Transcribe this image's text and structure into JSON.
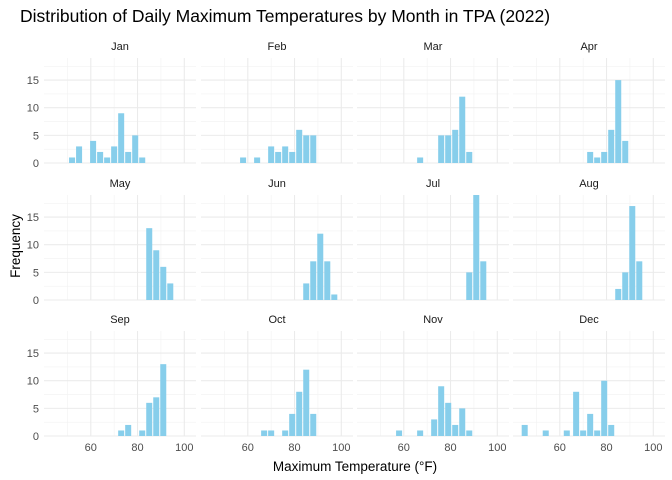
{
  "chart_data": {
    "type": "bar",
    "title": "Distribution of Daily Maximum Temperatures by Month in TPA (2022)",
    "xlabel": "Maximum Temperature (°F)",
    "ylabel": "Frequency",
    "xlim": [
      40,
      105
    ],
    "ylim": [
      0,
      19
    ],
    "x_ticks": [
      60,
      80,
      100
    ],
    "y_ticks": [
      0,
      5,
      10,
      15
    ],
    "bin_width": 3,
    "bar_color": "#87CEEB",
    "grid": true,
    "facets": [
      {
        "label": "Jan",
        "bins": [
          {
            "x": 52,
            "count": 1
          },
          {
            "x": 55,
            "count": 3
          },
          {
            "x": 61,
            "count": 4
          },
          {
            "x": 64,
            "count": 2
          },
          {
            "x": 67,
            "count": 1
          },
          {
            "x": 70,
            "count": 3
          },
          {
            "x": 73,
            "count": 9
          },
          {
            "x": 76,
            "count": 2
          },
          {
            "x": 79,
            "count": 5
          },
          {
            "x": 82,
            "count": 1
          }
        ]
      },
      {
        "label": "Feb",
        "bins": [
          {
            "x": 58,
            "count": 1
          },
          {
            "x": 64,
            "count": 1
          },
          {
            "x": 70,
            "count": 3
          },
          {
            "x": 73,
            "count": 2
          },
          {
            "x": 76,
            "count": 3
          },
          {
            "x": 79,
            "count": 2
          },
          {
            "x": 82,
            "count": 6
          },
          {
            "x": 85,
            "count": 5
          },
          {
            "x": 88,
            "count": 5
          }
        ]
      },
      {
        "label": "Mar",
        "bins": [
          {
            "x": 67,
            "count": 1
          },
          {
            "x": 76,
            "count": 5
          },
          {
            "x": 79,
            "count": 5
          },
          {
            "x": 82,
            "count": 6
          },
          {
            "x": 85,
            "count": 12
          },
          {
            "x": 88,
            "count": 2
          }
        ]
      },
      {
        "label": "Apr",
        "bins": [
          {
            "x": 73,
            "count": 2
          },
          {
            "x": 76,
            "count": 1
          },
          {
            "x": 79,
            "count": 2
          },
          {
            "x": 82,
            "count": 6
          },
          {
            "x": 85,
            "count": 15
          },
          {
            "x": 88,
            "count": 4
          }
        ]
      },
      {
        "label": "May",
        "bins": [
          {
            "x": 85,
            "count": 13
          },
          {
            "x": 88,
            "count": 9
          },
          {
            "x": 91,
            "count": 6
          },
          {
            "x": 94,
            "count": 3
          }
        ]
      },
      {
        "label": "Jun",
        "bins": [
          {
            "x": 85,
            "count": 3
          },
          {
            "x": 88,
            "count": 7
          },
          {
            "x": 91,
            "count": 12
          },
          {
            "x": 94,
            "count": 7
          },
          {
            "x": 97,
            "count": 1
          }
        ]
      },
      {
        "label": "Jul",
        "bins": [
          {
            "x": 88,
            "count": 5
          },
          {
            "x": 91,
            "count": 19
          },
          {
            "x": 94,
            "count": 7
          }
        ]
      },
      {
        "label": "Aug",
        "bins": [
          {
            "x": 85,
            "count": 2
          },
          {
            "x": 88,
            "count": 5
          },
          {
            "x": 91,
            "count": 17
          },
          {
            "x": 94,
            "count": 7
          }
        ]
      },
      {
        "label": "Sep",
        "bins": [
          {
            "x": 73,
            "count": 1
          },
          {
            "x": 76,
            "count": 2
          },
          {
            "x": 82,
            "count": 1
          },
          {
            "x": 85,
            "count": 6
          },
          {
            "x": 88,
            "count": 7
          },
          {
            "x": 91,
            "count": 13
          }
        ]
      },
      {
        "label": "Oct",
        "bins": [
          {
            "x": 67,
            "count": 1
          },
          {
            "x": 70,
            "count": 1
          },
          {
            "x": 76,
            "count": 1
          },
          {
            "x": 79,
            "count": 4
          },
          {
            "x": 82,
            "count": 8
          },
          {
            "x": 85,
            "count": 12
          },
          {
            "x": 88,
            "count": 4
          }
        ]
      },
      {
        "label": "Nov",
        "bins": [
          {
            "x": 58,
            "count": 1
          },
          {
            "x": 67,
            "count": 1
          },
          {
            "x": 73,
            "count": 3
          },
          {
            "x": 76,
            "count": 9
          },
          {
            "x": 79,
            "count": 6
          },
          {
            "x": 82,
            "count": 2
          },
          {
            "x": 85,
            "count": 5
          },
          {
            "x": 88,
            "count": 1
          }
        ]
      },
      {
        "label": "Dec",
        "bins": [
          {
            "x": 45,
            "count": 2
          },
          {
            "x": 54,
            "count": 1
          },
          {
            "x": 63,
            "count": 1
          },
          {
            "x": 67,
            "count": 8
          },
          {
            "x": 70,
            "count": 1
          },
          {
            "x": 73,
            "count": 4
          },
          {
            "x": 76,
            "count": 1
          },
          {
            "x": 79,
            "count": 10
          },
          {
            "x": 82,
            "count": 2
          }
        ]
      }
    ]
  }
}
